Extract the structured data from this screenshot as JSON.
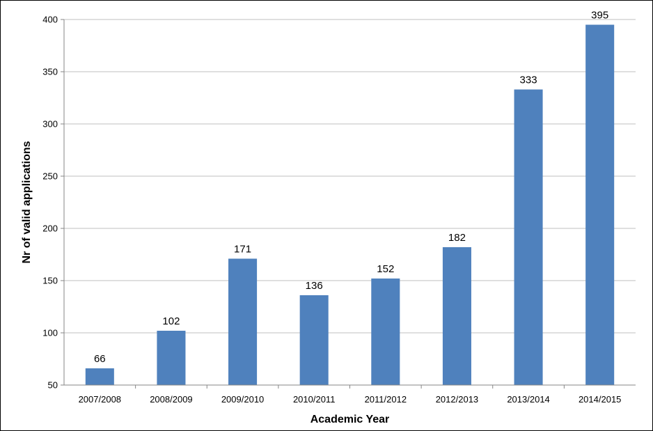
{
  "chart_data": {
    "type": "bar",
    "title": "",
    "xlabel": "Academic Year",
    "ylabel": "Nr of valid applications",
    "categories": [
      "2007/2008",
      "2008/2009",
      "2009/2010",
      "2010/2011",
      "2011/2012",
      "2012/2013",
      "2013/2014",
      "2014/2015"
    ],
    "values": [
      66,
      102,
      171,
      136,
      152,
      182,
      333,
      395
    ],
    "data_labels": [
      "66",
      "102",
      "171",
      "136",
      "152",
      "182",
      "333",
      "395"
    ],
    "ylim": [
      50,
      400
    ],
    "yticks": [
      50,
      100,
      150,
      200,
      250,
      300,
      350,
      400
    ],
    "ytick_labels": [
      "50",
      "100",
      "150",
      "200",
      "250",
      "300",
      "350",
      "400"
    ],
    "grid": true,
    "legend": "none",
    "bar_color": "#4F81BD",
    "grid_color": "#BFBFBF"
  }
}
